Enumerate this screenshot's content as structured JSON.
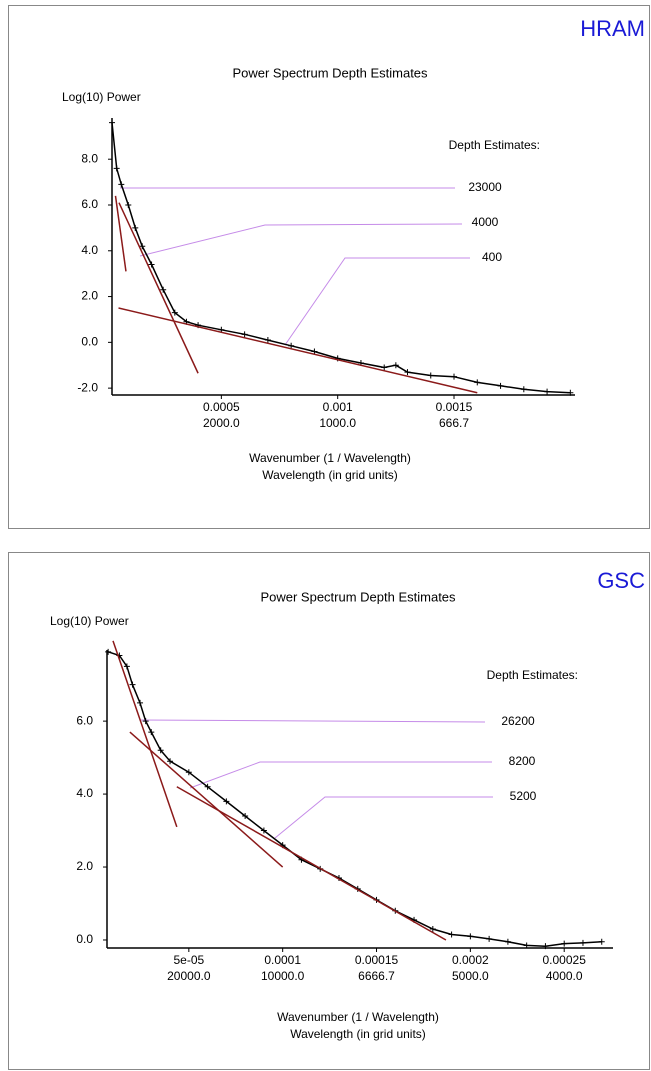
{
  "chart_data": [
    {
      "type": "line",
      "panel_label": "HRAM",
      "title": "Power Spectrum Depth Estimates",
      "y_label": "Log(10) Power",
      "x_label": [
        "Wavenumber (1 / Wavelength)",
        "Wavelength (in grid units)"
      ],
      "annotation_title": "Depth Estimates:",
      "depth_estimates": [
        23000,
        4000,
        400
      ],
      "xlim": [
        3e-05,
        0.00202
      ],
      "ylim": [
        -2.3,
        9.8
      ],
      "xticks": [
        0.0005,
        0.001,
        0.0015
      ],
      "xtick_wavelength_labels": [
        "2000.0",
        "1000.0",
        "666.7"
      ],
      "yticks": [
        {
          "value": 8,
          "label": "8.0"
        },
        {
          "value": 6,
          "label": "6.0"
        },
        {
          "value": 4,
          "label": "4.0"
        },
        {
          "value": 2,
          "label": "2.0"
        },
        {
          "value": 0,
          "label": "0.0"
        },
        {
          "value": -2,
          "label": "-2.0"
        }
      ],
      "color": "#000000",
      "fit_color": "#8b1a1a",
      "leader_color": "#c58be8",
      "x": [
        3e-05,
        5e-05,
        7e-05,
        0.0001,
        0.00013,
        0.00016,
        0.0002,
        0.00025,
        0.0003,
        0.00035,
        0.0004,
        0.0005,
        0.0006,
        0.0007,
        0.0008,
        0.0009,
        0.001,
        0.0011,
        0.0012,
        0.00125,
        0.0013,
        0.0014,
        0.0015,
        0.0016,
        0.0017,
        0.0018,
        0.0019,
        0.002
      ],
      "values": [
        9.6,
        7.6,
        6.9,
        6.0,
        5.0,
        4.2,
        3.4,
        2.3,
        1.3,
        0.9,
        0.75,
        0.55,
        0.35,
        0.1,
        -0.15,
        -0.4,
        -0.7,
        -0.9,
        -1.1,
        -1.0,
        -1.3,
        -1.45,
        -1.5,
        -1.75,
        -1.9,
        -2.05,
        -2.15,
        -2.2
      ],
      "fit_lines": [
        {
          "x": [
            4.5e-05,
            9e-05
          ],
          "y": [
            6.4,
            3.1
          ]
        },
        {
          "x": [
            6e-05,
            0.0004
          ],
          "y": [
            6.1,
            -1.35
          ]
        },
        {
          "x": [
            5.8e-05,
            0.0016
          ],
          "y": [
            1.5,
            -2.2
          ]
        }
      ]
    },
    {
      "type": "line",
      "panel_label": "GSC",
      "title": "Power Spectrum Depth Estimates",
      "y_label": "Log(10) Power",
      "x_label": [
        "Wavenumber (1 / Wavelength)",
        "Wavelength (in grid units)"
      ],
      "annotation_title": "Depth Estimates:",
      "depth_estimates": [
        26200,
        8200,
        5200
      ],
      "xlim": [
        6.4e-06,
        0.000276
      ],
      "ylim": [
        -0.22,
        7.95
      ],
      "xticks": [
        {
          "value": 5e-05,
          "label": "5e-05"
        },
        0.0001,
        0.00015,
        0.0002,
        0.00025
      ],
      "xtick_wavelength_labels": [
        "20000.0",
        "10000.0",
        "6666.7",
        "5000.0",
        "4000.0"
      ],
      "yticks": [
        {
          "value": 6,
          "label": "6.0"
        },
        {
          "value": 4,
          "label": "4.0"
        },
        {
          "value": 2,
          "label": "2.0"
        },
        {
          "value": 0,
          "label": "0.0"
        }
      ],
      "color": "#000000",
      "fit_color": "#8b1a1a",
      "leader_color": "#c58be8",
      "x": [
        7e-06,
        1.3e-05,
        1.7e-05,
        2e-05,
        2.4e-05,
        2.7e-05,
        3e-05,
        3.5e-05,
        4e-05,
        5e-05,
        6e-05,
        7e-05,
        8e-05,
        9e-05,
        0.0001,
        0.00011,
        0.00012,
        0.00013,
        0.00014,
        0.00015,
        0.00016,
        0.00017,
        0.00018,
        0.00019,
        0.0002,
        0.00021,
        0.00022,
        0.00023,
        0.00024,
        0.00025,
        0.00026,
        0.00027
      ],
      "values": [
        7.9,
        7.8,
        7.5,
        7.0,
        6.5,
        6.0,
        5.7,
        5.2,
        4.9,
        4.6,
        4.2,
        3.8,
        3.4,
        3.0,
        2.6,
        2.2,
        1.95,
        1.7,
        1.4,
        1.1,
        0.8,
        0.55,
        0.3,
        0.15,
        0.1,
        0.03,
        -0.05,
        -0.15,
        -0.17,
        -0.1,
        -0.08,
        -0.05
      ],
      "fit_lines": [
        {
          "x": [
            9.6e-06,
            4.36e-05
          ],
          "y": [
            8.2,
            3.1
          ]
        },
        {
          "x": [
            1.86e-05,
            0.0001
          ],
          "y": [
            5.7,
            2.0
          ]
        },
        {
          "x": [
            4.36e-05,
            0.000187
          ],
          "y": [
            4.2,
            0.0
          ]
        }
      ]
    }
  ]
}
